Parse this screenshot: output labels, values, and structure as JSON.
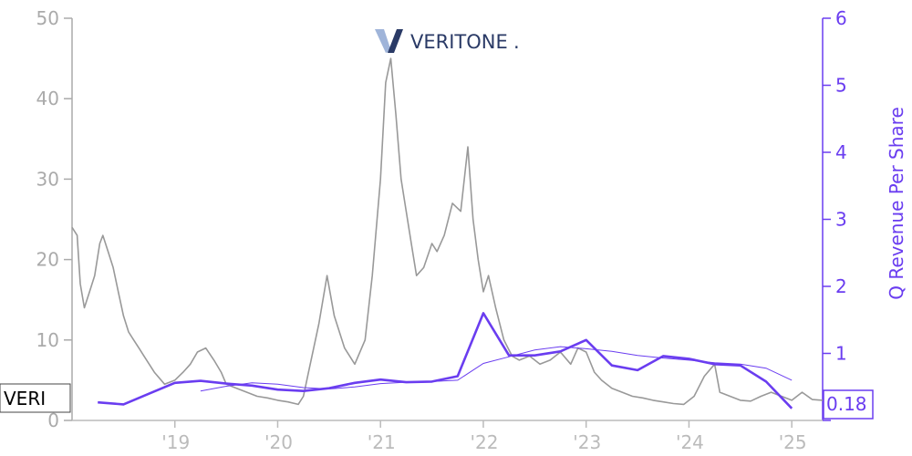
{
  "logo": {
    "text": "VERITONE",
    "dot": "."
  },
  "ticker": "VERI",
  "last_value_label": "0.18",
  "colors": {
    "price": "#999999",
    "revenue": "#6a3df0",
    "left_axis": "#aaaaaa",
    "right_axis": "#6a3df0",
    "x_axis": "#bbbbbb",
    "logo_light": "#9fb4d9",
    "logo_dark": "#2a3a66"
  },
  "chart_data": {
    "type": "line",
    "title": "",
    "xlabel": "",
    "ylabel_left": "",
    "ylabel_right": "Q Revenue Per Share",
    "xlim": [
      2018.0,
      2025.3
    ],
    "ylim_left": [
      0,
      50
    ],
    "ylim_right": [
      0,
      6
    ],
    "left_ticks": [
      "0",
      "10",
      "20",
      "30",
      "40",
      "50"
    ],
    "right_ticks": [
      "0",
      "1",
      "2",
      "3",
      "4",
      "5",
      "6"
    ],
    "x_ticks": [
      {
        "x": 2019,
        "label": "'19"
      },
      {
        "x": 2020,
        "label": "'20"
      },
      {
        "x": 2021,
        "label": "'21"
      },
      {
        "x": 2022,
        "label": "'22"
      },
      {
        "x": 2023,
        "label": "'23"
      },
      {
        "x": 2024,
        "label": "'24"
      },
      {
        "x": 2025,
        "label": "'25"
      }
    ],
    "grid": false,
    "series": [
      {
        "name": "VERI",
        "axis": "left",
        "x": [
          2018.0,
          2018.05,
          2018.08,
          2018.12,
          2018.17,
          2018.22,
          2018.27,
          2018.3,
          2018.35,
          2018.4,
          2018.45,
          2018.5,
          2018.55,
          2018.6,
          2018.65,
          2018.7,
          2018.8,
          2018.9,
          2019.0,
          2019.08,
          2019.15,
          2019.22,
          2019.3,
          2019.38,
          2019.45,
          2019.5,
          2019.6,
          2019.7,
          2019.8,
          2019.9,
          2020.0,
          2020.1,
          2020.2,
          2020.25,
          2020.3,
          2020.4,
          2020.48,
          2020.55,
          2020.65,
          2020.75,
          2020.85,
          2020.92,
          2021.0,
          2021.05,
          2021.1,
          2021.15,
          2021.2,
          2021.25,
          2021.3,
          2021.35,
          2021.42,
          2021.5,
          2021.55,
          2021.62,
          2021.7,
          2021.78,
          2021.85,
          2021.9,
          2021.95,
          2022.0,
          2022.05,
          2022.12,
          2022.2,
          2022.28,
          2022.35,
          2022.45,
          2022.55,
          2022.65,
          2022.75,
          2022.85,
          2022.92,
          2023.0,
          2023.08,
          2023.15,
          2023.25,
          2023.35,
          2023.45,
          2023.55,
          2023.65,
          2023.75,
          2023.85,
          2023.95,
          2024.05,
          2024.15,
          2024.25,
          2024.3,
          2024.4,
          2024.5,
          2024.6,
          2024.7,
          2024.8,
          2024.9,
          2025.0,
          2025.1,
          2025.2,
          2025.3
        ],
        "values": [
          24,
          23,
          17,
          14,
          16,
          18,
          22,
          23,
          21,
          19,
          16,
          13,
          11,
          10,
          9,
          8,
          6,
          4.5,
          5,
          6,
          7,
          8.5,
          9,
          7.5,
          6,
          4.5,
          4,
          3.5,
          3,
          2.8,
          2.5,
          2.3,
          2,
          3,
          6,
          12,
          18,
          13,
          9,
          7,
          10,
          18,
          30,
          42,
          45,
          38,
          30,
          26,
          22,
          18,
          19,
          22,
          21,
          23,
          27,
          26,
          34,
          25,
          20,
          16,
          18,
          14,
          10,
          8,
          7.5,
          8,
          7,
          7.5,
          8.5,
          7,
          9,
          8.5,
          6,
          5,
          4,
          3.5,
          3,
          2.8,
          2.5,
          2.3,
          2.1,
          2,
          3,
          5.5,
          7,
          3.5,
          3,
          2.5,
          2.4,
          3,
          3.5,
          3,
          2.5,
          3.5,
          2.6,
          2.5
        ]
      },
      {
        "name": "Q Revenue Per Share",
        "axis": "right",
        "x": [
          2018.25,
          2018.5,
          2018.75,
          2019.0,
          2019.25,
          2019.5,
          2019.75,
          2020.0,
          2020.25,
          2020.5,
          2020.75,
          2021.0,
          2021.25,
          2021.5,
          2021.75,
          2022.0,
          2022.25,
          2022.5,
          2022.75,
          2023.0,
          2023.25,
          2023.5,
          2023.75,
          2024.0,
          2024.25,
          2024.5,
          2024.75,
          2025.0
        ],
        "values": [
          0.27,
          0.24,
          0.4,
          0.56,
          0.59,
          0.55,
          0.52,
          0.46,
          0.44,
          0.48,
          0.56,
          0.61,
          0.57,
          0.58,
          0.66,
          1.6,
          0.97,
          0.97,
          1.03,
          1.2,
          0.82,
          0.75,
          0.96,
          0.92,
          0.84,
          0.82,
          0.58,
          0.18
        ]
      },
      {
        "axis": "right",
        "style": "thin",
        "x": [
          2019.25,
          2019.5,
          2019.75,
          2020.0,
          2020.25,
          2020.5,
          2020.75,
          2021.0,
          2021.25,
          2021.5,
          2021.75,
          2022.0,
          2022.25,
          2022.5,
          2022.75,
          2023.0,
          2023.25,
          2023.5,
          2023.75,
          2024.0,
          2024.25,
          2024.5,
          2024.75,
          2025.0
        ],
        "values": [
          0.44,
          0.51,
          0.56,
          0.54,
          0.49,
          0.47,
          0.5,
          0.55,
          0.57,
          0.58,
          0.6,
          0.85,
          0.95,
          1.05,
          1.1,
          1.07,
          1.03,
          0.97,
          0.93,
          0.9,
          0.86,
          0.84,
          0.78,
          0.6
        ]
      }
    ]
  }
}
